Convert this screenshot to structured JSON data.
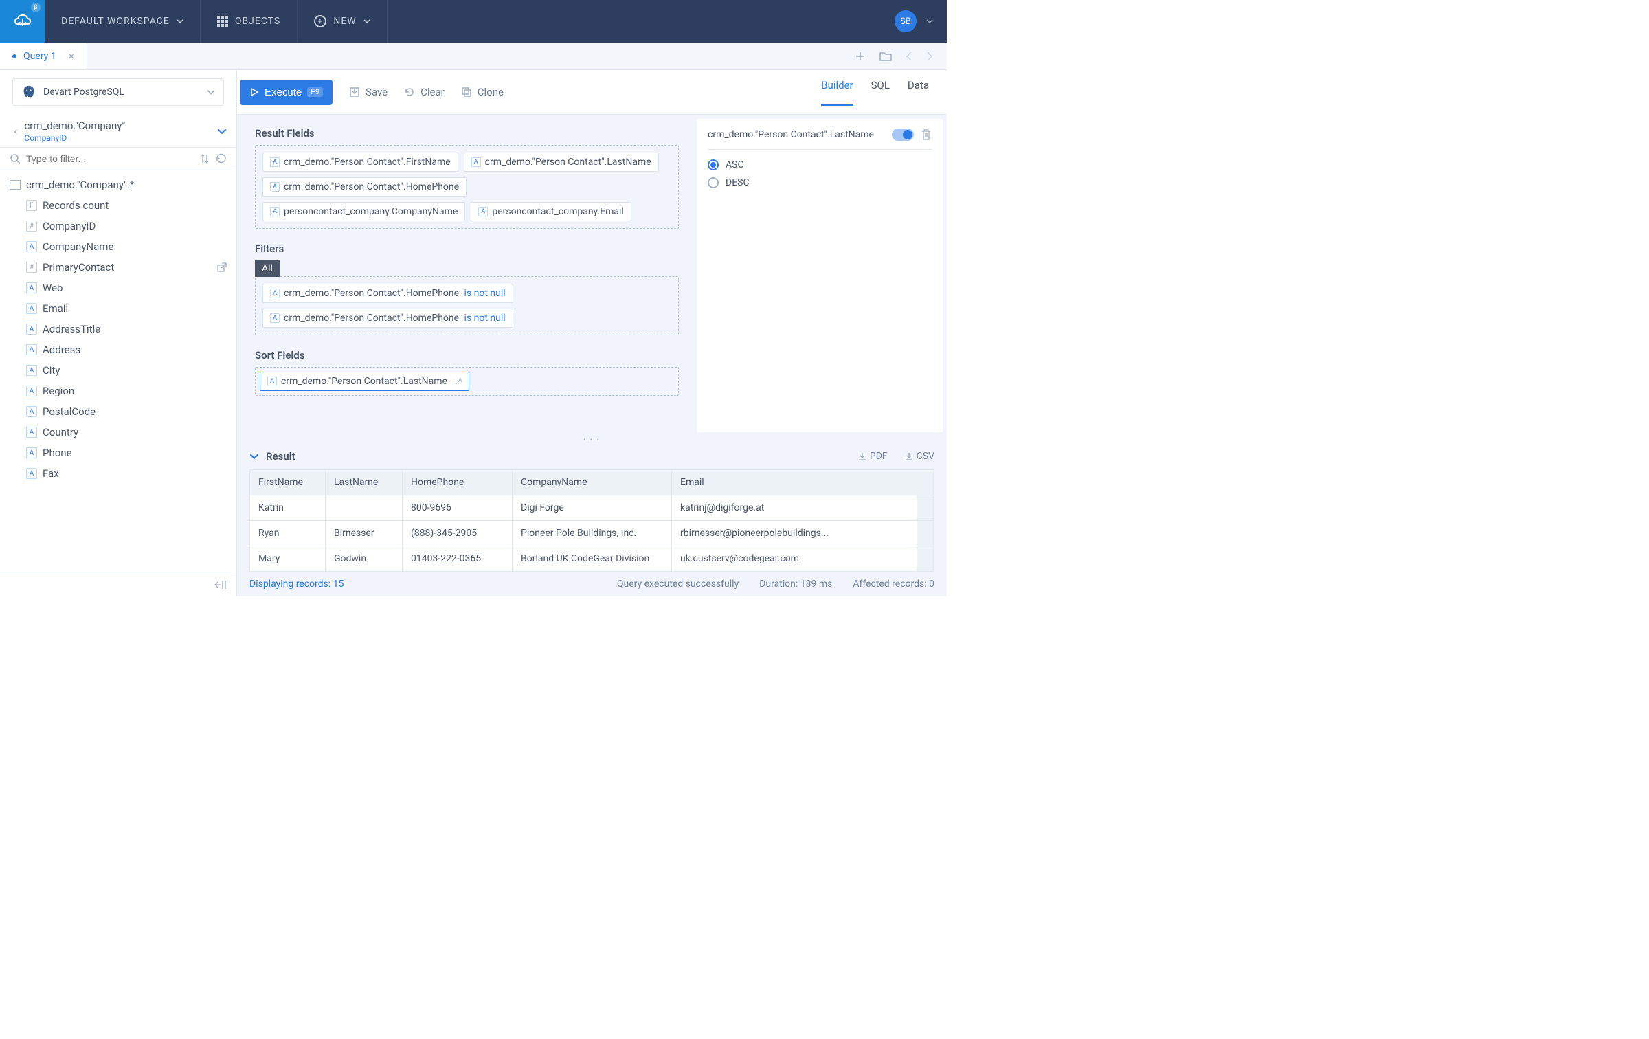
{
  "navbar": {
    "workspace": "DEFAULT WORKSPACE",
    "objects": "OBJECTS",
    "new": "NEW",
    "avatar": "SB"
  },
  "tabs": {
    "query1": "Query 1"
  },
  "connection": {
    "name": "Devart PostgreSQL"
  },
  "breadcrumb": {
    "path": "crm_demo.\"Company\"",
    "sub": "CompanyID"
  },
  "filter": {
    "placeholder": "Type to filter..."
  },
  "tree": {
    "root": "crm_demo.\"Company\".*",
    "items": [
      "Records count",
      "CompanyID",
      "CompanyName",
      "PrimaryContact",
      "Web",
      "Email",
      "AddressTitle",
      "Address",
      "City",
      "Region",
      "PostalCode",
      "Country",
      "Phone",
      "Fax"
    ],
    "badges": [
      "F",
      "#",
      "A",
      "#",
      "A",
      "A",
      "A",
      "A",
      "A",
      "A",
      "A",
      "A",
      "A",
      "A"
    ]
  },
  "toolbar": {
    "execute": "Execute",
    "execute_key": "F9",
    "save": "Save",
    "clear": "Clear",
    "clone": "Clone"
  },
  "viewtabs": {
    "builder": "Builder",
    "sql": "SQL",
    "data": "Data"
  },
  "sections": {
    "result_fields": "Result Fields",
    "filters": "Filters",
    "sort_fields": "Sort Fields",
    "all": "All"
  },
  "result_fields": [
    "crm_demo.\"Person Contact\".FirstName",
    "crm_demo.\"Person Contact\".LastName",
    "crm_demo.\"Person Contact\".HomePhone",
    "personcontact_company.CompanyName",
    "personcontact_company.Email"
  ],
  "filters_list": [
    {
      "field": "crm_demo.\"Person Contact\".HomePhone",
      "op": "is not null"
    },
    {
      "field": "crm_demo.\"Person Contact\".HomePhone",
      "op": "is not null"
    }
  ],
  "sort_fields": [
    "crm_demo.\"Person Contact\".LastName"
  ],
  "right_panel": {
    "field": "crm_demo.\"Person Contact\".LastName",
    "asc": "ASC",
    "desc": "DESC"
  },
  "result": {
    "title": "Result",
    "pdf": "PDF",
    "csv": "CSV",
    "columns": [
      "FirstName",
      "LastName",
      "HomePhone",
      "CompanyName",
      "Email"
    ],
    "rows": [
      [
        "Katrin",
        "",
        "800-9696",
        "Digi Forge",
        "katrinj@digiforge.at"
      ],
      [
        "Ryan",
        "Birnesser",
        "(888)-345-2905",
        "Pioneer Pole Buildings, Inc.",
        "rbirnesser@pioneerpolebuildings..."
      ],
      [
        "Mary",
        "Godwin",
        "01403-222-0365",
        "Borland UK CodeGear Division",
        "uk.custserv@codegear.com"
      ]
    ]
  },
  "status": {
    "displaying": "Displaying records: 15",
    "success": "Query executed successfully",
    "duration": "Duration: 189 ms",
    "affected": "Affected records: 0"
  },
  "colors": {
    "primary": "#2c7be5",
    "navbar_bg": "#2d3e5e",
    "logo_bg": "#1a87d8",
    "panel_bg": "#f1f5fb",
    "border": "#e2e8f0"
  }
}
